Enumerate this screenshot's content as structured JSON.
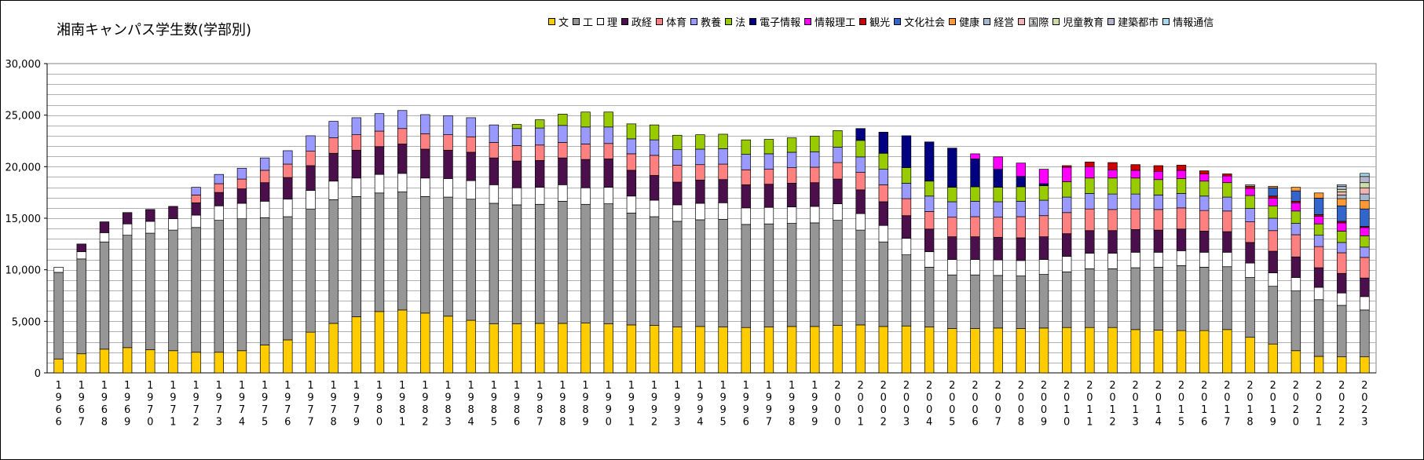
{
  "title": "湘南キャンパス学生数(学部別)",
  "chart_data": {
    "type": "bar",
    "stacked": true,
    "title": "湘南キャンパス学生数(学部別)",
    "xlabel": "",
    "ylabel": "",
    "ylim": [
      0,
      30000
    ],
    "yticks": [
      "0",
      "5,000",
      "10,000",
      "15,000",
      "20,000",
      "25,000",
      "30,000"
    ],
    "grid": true,
    "legend_position": "top-right",
    "categories": [
      "1966",
      "1967",
      "1968",
      "1969",
      "1970",
      "1971",
      "1972",
      "1973",
      "1974",
      "1975",
      "1976",
      "1977",
      "1978",
      "1979",
      "1980",
      "1981",
      "1982",
      "1983",
      "1984",
      "1985",
      "1986",
      "1987",
      "1988",
      "1989",
      "1990",
      "1991",
      "1992",
      "1993",
      "1994",
      "1995",
      "1996",
      "1997",
      "1998",
      "1999",
      "2000",
      "2001",
      "2002",
      "2003",
      "2004",
      "2005",
      "2006",
      "2007",
      "2008",
      "2009",
      "2010",
      "2011",
      "2012",
      "2013",
      "2014",
      "2015",
      "2016",
      "2017",
      "2018",
      "2019",
      "2020",
      "2021",
      "2022",
      "2023"
    ],
    "series": [
      {
        "name": "文",
        "color": "#FFCC00",
        "values": [
          1350,
          1850,
          2300,
          2450,
          2250,
          2150,
          2000,
          2000,
          2150,
          2700,
          3200,
          3950,
          4800,
          5450,
          5950,
          6100,
          5800,
          5500,
          5100,
          4750,
          4750,
          4800,
          4800,
          4850,
          4750,
          4650,
          4600,
          4450,
          4500,
          4450,
          4400,
          4450,
          4500,
          4500,
          4600,
          4650,
          4500,
          4550,
          4450,
          4300,
          4300,
          4350,
          4300,
          4350,
          4400,
          4400,
          4400,
          4200,
          4150,
          4100,
          4100,
          4200,
          3450,
          2800,
          2150,
          1600,
          1550,
          1550
        ]
      },
      {
        "name": "工",
        "color": "#969696",
        "values": [
          8400,
          9200,
          10400,
          10900,
          11300,
          11700,
          12100,
          12800,
          12800,
          12350,
          11950,
          11950,
          12000,
          11650,
          11500,
          11450,
          11300,
          11550,
          11750,
          11700,
          11550,
          11550,
          11850,
          11500,
          11650,
          10850,
          10550,
          10250,
          10350,
          10450,
          10000,
          10000,
          10000,
          10050,
          10200,
          9200,
          8200,
          6900,
          5800,
          5200,
          5200,
          5100,
          5100,
          5200,
          5400,
          5700,
          5700,
          6000,
          6100,
          6300,
          6150,
          6100,
          5800,
          5600,
          5800,
          5500,
          5000,
          4550
        ]
      },
      {
        "name": "理",
        "color": "#FFFFFF",
        "values": [
          500,
          700,
          900,
          1100,
          1150,
          1100,
          1200,
          1400,
          1500,
          1600,
          1700,
          1800,
          1800,
          1800,
          1800,
          1800,
          1800,
          1800,
          1800,
          1800,
          1650,
          1650,
          1600,
          1600,
          1600,
          1650,
          1600,
          1600,
          1600,
          1600,
          1600,
          1600,
          1600,
          1600,
          1600,
          1600,
          1600,
          1600,
          1500,
          1500,
          1500,
          1500,
          1500,
          1450,
          1500,
          1500,
          1500,
          1500,
          1450,
          1450,
          1450,
          1400,
          1400,
          1300,
          1300,
          1200,
          1200,
          1300
        ]
      },
      {
        "name": "政経",
        "color": "#4B0F4B",
        "values": [
          0,
          750,
          1050,
          1100,
          1150,
          1200,
          1200,
          1300,
          1400,
          1800,
          2100,
          2400,
          2700,
          2700,
          2700,
          2850,
          2800,
          2750,
          2750,
          2600,
          2600,
          2600,
          2600,
          2750,
          2750,
          2500,
          2400,
          2200,
          2250,
          2250,
          2250,
          2250,
          2300,
          2300,
          2400,
          2300,
          2300,
          2200,
          2200,
          2200,
          2200,
          2200,
          2200,
          2200,
          2200,
          2200,
          2200,
          2200,
          2150,
          2100,
          2050,
          2000,
          2000,
          2100,
          2000,
          1900,
          1900,
          1800
        ]
      },
      {
        "name": "体育",
        "color": "#FF8080",
        "values": [
          0,
          0,
          0,
          0,
          0,
          0,
          750,
          850,
          950,
          1200,
          1300,
          1400,
          1500,
          1500,
          1500,
          1500,
          1500,
          1500,
          1500,
          1500,
          1500,
          1500,
          1500,
          1500,
          1500,
          1600,
          1950,
          1650,
          1500,
          1500,
          1450,
          1450,
          1500,
          1500,
          1600,
          1700,
          1650,
          1650,
          1700,
          1900,
          1950,
          1950,
          2050,
          2050,
          2050,
          2100,
          2050,
          2000,
          2000,
          2050,
          2000,
          2000,
          2000,
          2000,
          2150,
          2050,
          2000,
          2000
        ]
      },
      {
        "name": "教養",
        "color": "#9999FF",
        "values": [
          0,
          0,
          0,
          0,
          0,
          0,
          750,
          900,
          1050,
          1200,
          1300,
          1500,
          1600,
          1650,
          1700,
          1750,
          1850,
          1850,
          1850,
          1700,
          1650,
          1650,
          1650,
          1650,
          1600,
          1450,
          1500,
          1500,
          1500,
          1500,
          1500,
          1500,
          1500,
          1500,
          1500,
          1500,
          1500,
          1500,
          1500,
          1500,
          1500,
          1500,
          1500,
          1500,
          1500,
          1500,
          1500,
          1450,
          1400,
          1400,
          1400,
          1350,
          1300,
          1200,
          1100,
          1100,
          1000,
          1000
        ]
      },
      {
        "name": "法",
        "color": "#99CC00",
        "values": [
          0,
          0,
          0,
          0,
          0,
          0,
          0,
          0,
          0,
          0,
          0,
          0,
          0,
          0,
          0,
          0,
          0,
          0,
          0,
          0,
          400,
          800,
          1100,
          1450,
          1450,
          1450,
          1450,
          1400,
          1400,
          1400,
          1400,
          1400,
          1400,
          1500,
          1600,
          1600,
          1550,
          1500,
          1450,
          1400,
          1400,
          1400,
          1400,
          1400,
          1500,
          1500,
          1550,
          1550,
          1500,
          1450,
          1450,
          1400,
          1250,
          1200,
          1200,
          1100,
          1100,
          1100
        ]
      },
      {
        "name": "電子情報",
        "color": "#000080",
        "values": [
          0,
          0,
          0,
          0,
          0,
          0,
          0,
          0,
          0,
          0,
          0,
          0,
          0,
          0,
          0,
          0,
          0,
          0,
          0,
          0,
          0,
          0,
          0,
          0,
          0,
          0,
          0,
          0,
          0,
          0,
          0,
          0,
          0,
          0,
          0,
          1150,
          2050,
          3100,
          3800,
          3800,
          2700,
          1750,
          1000,
          200,
          0,
          0,
          0,
          0,
          0,
          0,
          0,
          0,
          0,
          0,
          0,
          0,
          0,
          0
        ]
      },
      {
        "name": "情報理工",
        "color": "#FF00FF",
        "values": [
          0,
          0,
          0,
          0,
          0,
          0,
          0,
          0,
          0,
          0,
          0,
          0,
          0,
          0,
          0,
          0,
          0,
          0,
          0,
          0,
          0,
          0,
          0,
          0,
          0,
          0,
          0,
          0,
          0,
          0,
          0,
          0,
          0,
          0,
          0,
          0,
          0,
          0,
          0,
          0,
          500,
          1200,
          1300,
          1400,
          1400,
          1100,
          800,
          750,
          800,
          800,
          700,
          650,
          700,
          750,
          800,
          750,
          800,
          800
        ]
      },
      {
        "name": "観光",
        "color": "#CC0000",
        "values": [
          0,
          0,
          0,
          0,
          0,
          0,
          0,
          0,
          0,
          0,
          0,
          0,
          0,
          0,
          0,
          0,
          0,
          0,
          0,
          0,
          0,
          0,
          0,
          0,
          0,
          0,
          0,
          0,
          0,
          0,
          0,
          0,
          0,
          0,
          0,
          0,
          0,
          0,
          0,
          0,
          0,
          0,
          0,
          0,
          150,
          450,
          700,
          550,
          550,
          500,
          300,
          200,
          200,
          200,
          150,
          150,
          150,
          100
        ]
      },
      {
        "name": "文化社会",
        "color": "#3366CC",
        "values": [
          0,
          0,
          0,
          0,
          0,
          0,
          0,
          0,
          0,
          0,
          0,
          0,
          0,
          0,
          0,
          0,
          0,
          0,
          0,
          0,
          0,
          0,
          0,
          0,
          0,
          0,
          0,
          0,
          0,
          0,
          0,
          0,
          0,
          0,
          0,
          0,
          0,
          0,
          0,
          0,
          0,
          0,
          0,
          0,
          0,
          0,
          0,
          0,
          0,
          0,
          0,
          0,
          0,
          800,
          1000,
          1600,
          1500,
          1700
        ]
      },
      {
        "name": "健康",
        "color": "#FF9933",
        "values": [
          0,
          0,
          0,
          0,
          0,
          0,
          0,
          0,
          0,
          0,
          0,
          0,
          0,
          0,
          0,
          0,
          0,
          0,
          0,
          0,
          0,
          0,
          0,
          0,
          0,
          0,
          0,
          0,
          0,
          0,
          0,
          0,
          0,
          0,
          0,
          0,
          0,
          0,
          0,
          0,
          0,
          0,
          0,
          0,
          0,
          0,
          0,
          0,
          0,
          0,
          0,
          0,
          0,
          150,
          350,
          500,
          700,
          800
        ]
      },
      {
        "name": "経営",
        "color": "#A6B8CF",
        "values": [
          0,
          0,
          0,
          0,
          0,
          0,
          0,
          0,
          0,
          0,
          0,
          0,
          0,
          0,
          0,
          0,
          0,
          0,
          0,
          0,
          0,
          0,
          0,
          0,
          0,
          0,
          0,
          0,
          0,
          0,
          0,
          0,
          0,
          0,
          0,
          0,
          0,
          0,
          0,
          0,
          0,
          0,
          0,
          0,
          0,
          0,
          0,
          0,
          0,
          0,
          0,
          0,
          150,
          0,
          0,
          0,
          350,
          650
        ]
      },
      {
        "name": "国際",
        "color": "#F2B3B3",
        "values": [
          0,
          0,
          0,
          0,
          0,
          0,
          0,
          0,
          0,
          0,
          0,
          0,
          0,
          0,
          0,
          0,
          0,
          0,
          0,
          0,
          0,
          0,
          0,
          0,
          0,
          0,
          0,
          0,
          0,
          0,
          0,
          0,
          0,
          0,
          0,
          0,
          0,
          0,
          0,
          0,
          0,
          0,
          0,
          0,
          0,
          0,
          0,
          0,
          0,
          0,
          0,
          0,
          0,
          0,
          0,
          0,
          300,
          600
        ]
      },
      {
        "name": "児童教育",
        "color": "#CCDDA8",
        "values": [
          0,
          0,
          0,
          0,
          0,
          0,
          0,
          0,
          0,
          0,
          0,
          0,
          0,
          0,
          0,
          0,
          0,
          0,
          0,
          0,
          0,
          0,
          0,
          0,
          0,
          0,
          0,
          0,
          0,
          0,
          0,
          0,
          0,
          0,
          0,
          0,
          0,
          0,
          0,
          0,
          0,
          0,
          0,
          0,
          0,
          0,
          0,
          0,
          0,
          0,
          0,
          0,
          0,
          0,
          0,
          0,
          250,
          500
        ]
      },
      {
        "name": "建築都市",
        "color": "#B3B3CC",
        "values": [
          0,
          0,
          0,
          0,
          0,
          0,
          0,
          0,
          0,
          0,
          0,
          0,
          0,
          0,
          0,
          0,
          0,
          0,
          0,
          0,
          0,
          0,
          0,
          0,
          0,
          0,
          0,
          0,
          0,
          0,
          0,
          0,
          0,
          0,
          0,
          0,
          0,
          0,
          0,
          0,
          0,
          0,
          0,
          0,
          0,
          0,
          0,
          0,
          0,
          0,
          0,
          0,
          0,
          0,
          0,
          0,
          300,
          600
        ]
      },
      {
        "name": "情報通信",
        "color": "#A8D8E8",
        "values": [
          0,
          0,
          0,
          0,
          0,
          0,
          0,
          0,
          0,
          0,
          0,
          0,
          0,
          0,
          0,
          0,
          0,
          0,
          0,
          0,
          0,
          0,
          0,
          0,
          0,
          0,
          0,
          0,
          0,
          0,
          0,
          0,
          0,
          0,
          0,
          0,
          0,
          0,
          0,
          0,
          0,
          0,
          0,
          0,
          0,
          0,
          0,
          0,
          0,
          0,
          0,
          0,
          0,
          0,
          0,
          0,
          150,
          300
        ]
      }
    ]
  }
}
